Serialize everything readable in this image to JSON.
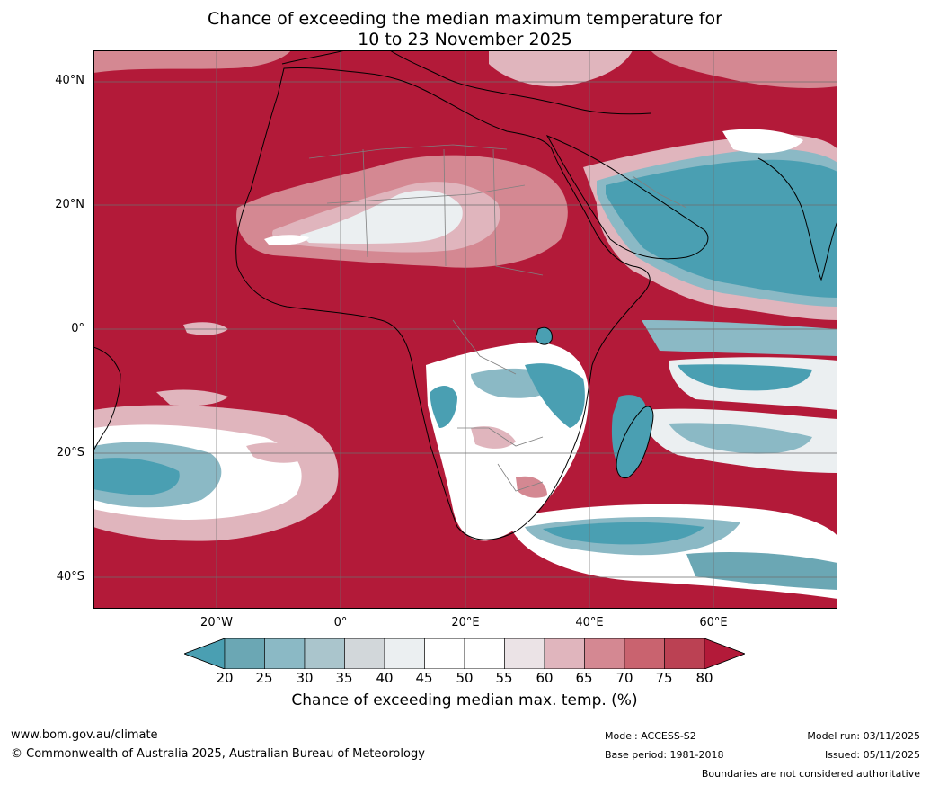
{
  "title": {
    "line1": "Chance of exceeding the median maximum temperature for",
    "line2": "10 to 23 November 2025"
  },
  "map": {
    "region": "Africa and surrounding oceans",
    "lat_ticks": [
      "40°N",
      "20°N",
      "0°",
      "20°S",
      "40°S"
    ],
    "lon_ticks": [
      "20°W",
      "0°",
      "20°E",
      "40°E",
      "60°E"
    ]
  },
  "legend": {
    "title": "Chance of exceeding median max. temp. (%)",
    "ticks": [
      "20",
      "25",
      "30",
      "35",
      "40",
      "45",
      "50",
      "55",
      "60",
      "65",
      "70",
      "75",
      "80"
    ],
    "colors": [
      "#4a9fb2",
      "#6ba7b4",
      "#8bb9c5",
      "#aac5cc",
      "#d2d7da",
      "#ebeff1",
      "#ffffff",
      "#ffffff",
      "#ebe3e6",
      "#e0b5bd",
      "#d48892",
      "#c9636f",
      "#bb4153",
      "#b31a39"
    ]
  },
  "footer": {
    "website": "www.bom.gov.au/climate",
    "copyright": "© Commonwealth of Australia 2025, Australian Bureau of Meteorology",
    "model": "Model: ACCESS-S2",
    "base_period": "Base period: 1981-2018",
    "model_run": "Model run: 03/11/2025",
    "issued": "Issued: 05/11/2025",
    "disclaimer": "Boundaries are not considered authoritative"
  },
  "colors": {
    "high": "#b31a39",
    "low": "#4a9fb2",
    "coast": "#000000",
    "border": "#808080"
  }
}
